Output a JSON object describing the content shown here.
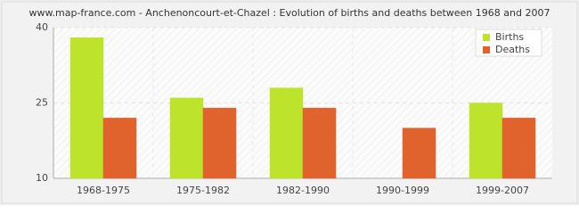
{
  "chart_data": {
    "type": "bar",
    "title": "www.map-france.com - Anchenoncourt-et-Chazel : Evolution of births and deaths between 1968 and 2007",
    "categories": [
      "1968-1975",
      "1975-1982",
      "1982-1990",
      "1990-1999",
      "1999-2007"
    ],
    "series": [
      {
        "name": "Births",
        "color": "#bde32c",
        "values": [
          38,
          26,
          28,
          10,
          25
        ]
      },
      {
        "name": "Deaths",
        "color": "#e0622c",
        "values": [
          22,
          24,
          24,
          20,
          22
        ]
      }
    ],
    "ylim": [
      10,
      40
    ],
    "yticks": [
      10,
      25,
      40
    ],
    "grid": true,
    "legend": "top-right"
  }
}
